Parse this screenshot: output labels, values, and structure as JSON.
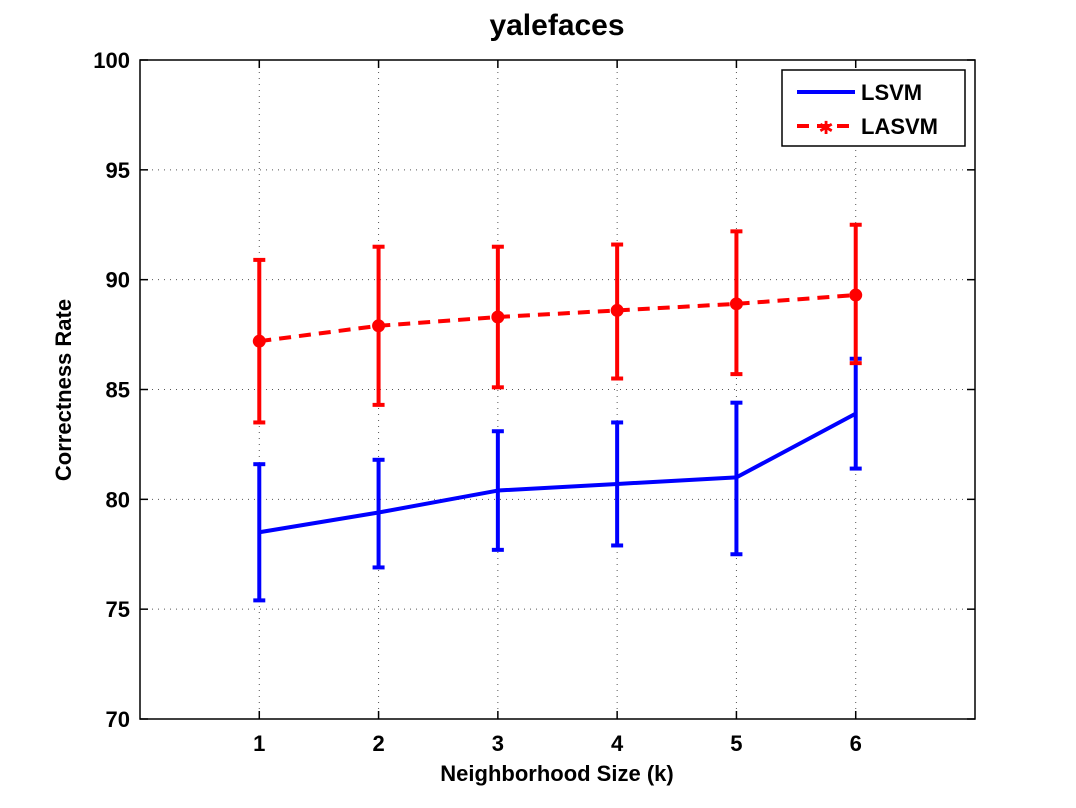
{
  "chart_data": {
    "type": "line",
    "title": "yalefaces",
    "xlabel": "Neighborhood Size (k)",
    "ylabel": "Correctness Rate",
    "xlim": [
      0,
      7
    ],
    "ylim": [
      70,
      100
    ],
    "x_ticks": [
      1,
      2,
      3,
      4,
      5,
      6
    ],
    "y_ticks": [
      70,
      75,
      80,
      85,
      90,
      95,
      100
    ],
    "grid": true,
    "legend_position": "top-right",
    "x": [
      1,
      2,
      3,
      4,
      5,
      6
    ],
    "series": [
      {
        "name": "LSVM",
        "color": "#0000ff",
        "style": "solid",
        "marker": "none",
        "values": [
          78.5,
          79.4,
          80.4,
          80.7,
          81.0,
          83.9
        ],
        "error_low": [
          75.4,
          76.9,
          77.7,
          77.9,
          77.5,
          81.4
        ],
        "error_high": [
          81.6,
          81.8,
          83.1,
          83.5,
          84.4,
          86.4
        ]
      },
      {
        "name": "LASVM",
        "color": "#ff0000",
        "style": "dashed",
        "marker": "circle",
        "values": [
          87.2,
          87.9,
          88.3,
          88.6,
          88.9,
          89.3
        ],
        "error_low": [
          83.5,
          84.3,
          85.1,
          85.5,
          85.7,
          86.2
        ],
        "error_high": [
          90.9,
          91.5,
          91.5,
          91.6,
          92.2,
          92.5
        ]
      }
    ]
  }
}
